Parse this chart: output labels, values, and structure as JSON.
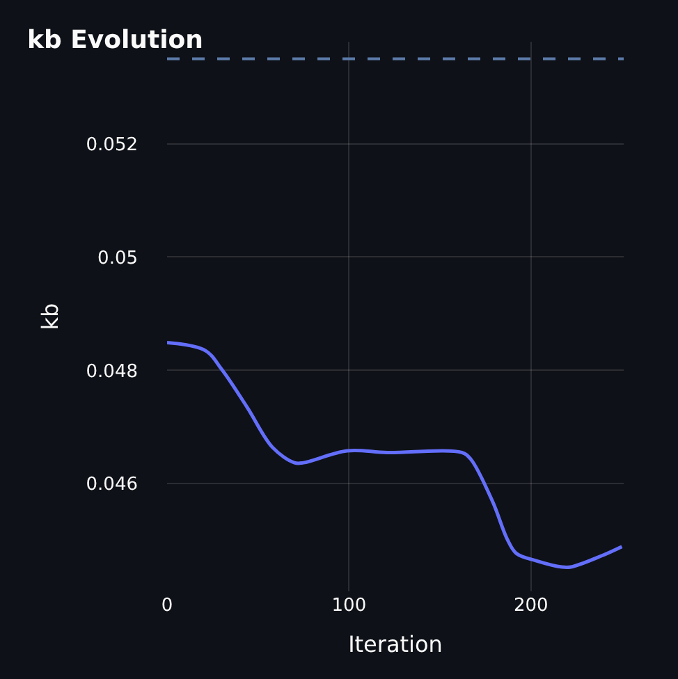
{
  "chart_data": {
    "type": "line",
    "title": "kb Evolution",
    "xlabel": "Iteration",
    "ylabel": "kb",
    "x": [
      0,
      21,
      30,
      44,
      58,
      70,
      75,
      99,
      121,
      162,
      167,
      179,
      187,
      192,
      203,
      217,
      222,
      239,
      250
    ],
    "series": [
      {
        "color": "#636efa",
        "values": [
          0.04849,
          0.04835,
          0.04802,
          0.04735,
          0.04664,
          0.04637,
          0.04637,
          0.04658,
          0.04655,
          0.04655,
          0.04643,
          0.04568,
          0.04502,
          0.04477,
          0.04464,
          0.04453,
          0.04453,
          0.04473,
          0.04489
        ]
      }
    ],
    "ref_lines": [
      {
        "axis": "y",
        "value": 0.0535,
        "color": "#5b7aa8",
        "line_style": "dashed"
      }
    ],
    "xlim": [
      0,
      251
    ],
    "ylim": [
      0.0441,
      0.0538
    ],
    "xticks": [
      0,
      100,
      200
    ],
    "yticks": [
      0.046,
      0.048,
      0.05,
      0.052
    ],
    "grid": true,
    "legend": false,
    "marker": "none",
    "line_style": "solid"
  }
}
